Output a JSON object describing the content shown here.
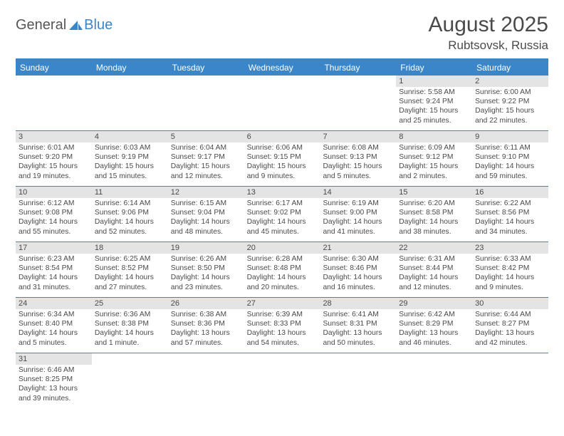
{
  "brand": {
    "part1": "General",
    "part2": "Blue"
  },
  "title": {
    "month": "August 2025",
    "location": "Rubtsovsk, Russia"
  },
  "colors": {
    "accent": "#3a86c8",
    "text": "#4a4a4a",
    "daybg": "#e4e4e4",
    "bg": "#ffffff"
  },
  "typography": {
    "body_fontsize": 10.3,
    "header_fontsize": 12,
    "title_fontsize": 30
  },
  "calendar": {
    "type": "table",
    "day_headers": [
      "Sunday",
      "Monday",
      "Tuesday",
      "Wednesday",
      "Thursday",
      "Friday",
      "Saturday"
    ],
    "weeks": [
      [
        null,
        null,
        null,
        null,
        null,
        {
          "n": "1",
          "sr": "Sunrise: 5:58 AM",
          "ss": "Sunset: 9:24 PM",
          "dl": "Daylight: 15 hours and 25 minutes."
        },
        {
          "n": "2",
          "sr": "Sunrise: 6:00 AM",
          "ss": "Sunset: 9:22 PM",
          "dl": "Daylight: 15 hours and 22 minutes."
        }
      ],
      [
        {
          "n": "3",
          "sr": "Sunrise: 6:01 AM",
          "ss": "Sunset: 9:20 PM",
          "dl": "Daylight: 15 hours and 19 minutes."
        },
        {
          "n": "4",
          "sr": "Sunrise: 6:03 AM",
          "ss": "Sunset: 9:19 PM",
          "dl": "Daylight: 15 hours and 15 minutes."
        },
        {
          "n": "5",
          "sr": "Sunrise: 6:04 AM",
          "ss": "Sunset: 9:17 PM",
          "dl": "Daylight: 15 hours and 12 minutes."
        },
        {
          "n": "6",
          "sr": "Sunrise: 6:06 AM",
          "ss": "Sunset: 9:15 PM",
          "dl": "Daylight: 15 hours and 9 minutes."
        },
        {
          "n": "7",
          "sr": "Sunrise: 6:08 AM",
          "ss": "Sunset: 9:13 PM",
          "dl": "Daylight: 15 hours and 5 minutes."
        },
        {
          "n": "8",
          "sr": "Sunrise: 6:09 AM",
          "ss": "Sunset: 9:12 PM",
          "dl": "Daylight: 15 hours and 2 minutes."
        },
        {
          "n": "9",
          "sr": "Sunrise: 6:11 AM",
          "ss": "Sunset: 9:10 PM",
          "dl": "Daylight: 14 hours and 59 minutes."
        }
      ],
      [
        {
          "n": "10",
          "sr": "Sunrise: 6:12 AM",
          "ss": "Sunset: 9:08 PM",
          "dl": "Daylight: 14 hours and 55 minutes."
        },
        {
          "n": "11",
          "sr": "Sunrise: 6:14 AM",
          "ss": "Sunset: 9:06 PM",
          "dl": "Daylight: 14 hours and 52 minutes."
        },
        {
          "n": "12",
          "sr": "Sunrise: 6:15 AM",
          "ss": "Sunset: 9:04 PM",
          "dl": "Daylight: 14 hours and 48 minutes."
        },
        {
          "n": "13",
          "sr": "Sunrise: 6:17 AM",
          "ss": "Sunset: 9:02 PM",
          "dl": "Daylight: 14 hours and 45 minutes."
        },
        {
          "n": "14",
          "sr": "Sunrise: 6:19 AM",
          "ss": "Sunset: 9:00 PM",
          "dl": "Daylight: 14 hours and 41 minutes."
        },
        {
          "n": "15",
          "sr": "Sunrise: 6:20 AM",
          "ss": "Sunset: 8:58 PM",
          "dl": "Daylight: 14 hours and 38 minutes."
        },
        {
          "n": "16",
          "sr": "Sunrise: 6:22 AM",
          "ss": "Sunset: 8:56 PM",
          "dl": "Daylight: 14 hours and 34 minutes."
        }
      ],
      [
        {
          "n": "17",
          "sr": "Sunrise: 6:23 AM",
          "ss": "Sunset: 8:54 PM",
          "dl": "Daylight: 14 hours and 31 minutes."
        },
        {
          "n": "18",
          "sr": "Sunrise: 6:25 AM",
          "ss": "Sunset: 8:52 PM",
          "dl": "Daylight: 14 hours and 27 minutes."
        },
        {
          "n": "19",
          "sr": "Sunrise: 6:26 AM",
          "ss": "Sunset: 8:50 PM",
          "dl": "Daylight: 14 hours and 23 minutes."
        },
        {
          "n": "20",
          "sr": "Sunrise: 6:28 AM",
          "ss": "Sunset: 8:48 PM",
          "dl": "Daylight: 14 hours and 20 minutes."
        },
        {
          "n": "21",
          "sr": "Sunrise: 6:30 AM",
          "ss": "Sunset: 8:46 PM",
          "dl": "Daylight: 14 hours and 16 minutes."
        },
        {
          "n": "22",
          "sr": "Sunrise: 6:31 AM",
          "ss": "Sunset: 8:44 PM",
          "dl": "Daylight: 14 hours and 12 minutes."
        },
        {
          "n": "23",
          "sr": "Sunrise: 6:33 AM",
          "ss": "Sunset: 8:42 PM",
          "dl": "Daylight: 14 hours and 9 minutes."
        }
      ],
      [
        {
          "n": "24",
          "sr": "Sunrise: 6:34 AM",
          "ss": "Sunset: 8:40 PM",
          "dl": "Daylight: 14 hours and 5 minutes."
        },
        {
          "n": "25",
          "sr": "Sunrise: 6:36 AM",
          "ss": "Sunset: 8:38 PM",
          "dl": "Daylight: 14 hours and 1 minute."
        },
        {
          "n": "26",
          "sr": "Sunrise: 6:38 AM",
          "ss": "Sunset: 8:36 PM",
          "dl": "Daylight: 13 hours and 57 minutes."
        },
        {
          "n": "27",
          "sr": "Sunrise: 6:39 AM",
          "ss": "Sunset: 8:33 PM",
          "dl": "Daylight: 13 hours and 54 minutes."
        },
        {
          "n": "28",
          "sr": "Sunrise: 6:41 AM",
          "ss": "Sunset: 8:31 PM",
          "dl": "Daylight: 13 hours and 50 minutes."
        },
        {
          "n": "29",
          "sr": "Sunrise: 6:42 AM",
          "ss": "Sunset: 8:29 PM",
          "dl": "Daylight: 13 hours and 46 minutes."
        },
        {
          "n": "30",
          "sr": "Sunrise: 6:44 AM",
          "ss": "Sunset: 8:27 PM",
          "dl": "Daylight: 13 hours and 42 minutes."
        }
      ],
      [
        {
          "n": "31",
          "sr": "Sunrise: 6:46 AM",
          "ss": "Sunset: 8:25 PM",
          "dl": "Daylight: 13 hours and 39 minutes."
        },
        null,
        null,
        null,
        null,
        null,
        null
      ]
    ]
  }
}
